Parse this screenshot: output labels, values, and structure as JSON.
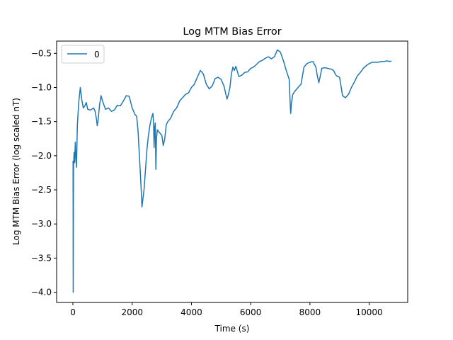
{
  "chart_data": {
    "type": "line",
    "title": "Log MTM Bias Error",
    "xlabel": "Time (s)",
    "ylabel": "Log MTM Bias Error (log scaled nT)",
    "xlim": [
      -550,
      11300
    ],
    "ylim": [
      -4.15,
      -0.32
    ],
    "xticks": [
      0,
      2000,
      4000,
      6000,
      8000,
      10000
    ],
    "xtick_labels": [
      "0",
      "2000",
      "4000",
      "6000",
      "8000",
      "10000"
    ],
    "yticks": [
      -4.0,
      -3.5,
      -3.0,
      -2.5,
      -2.0,
      -1.5,
      -1.0,
      -0.5
    ],
    "ytick_labels": [
      "−4.0",
      "−3.5",
      "−3.0",
      "−2.5",
      "−2.0",
      "−1.5",
      "−1.0",
      "−0.5"
    ],
    "grid": false,
    "legend": {
      "position": "top-left",
      "entries": [
        "0"
      ]
    },
    "series": [
      {
        "name": "0",
        "color": "#1f77b4",
        "x": [
          0,
          5,
          10,
          20,
          40,
          60,
          80,
          100,
          120,
          150,
          200,
          250,
          300,
          350,
          400,
          450,
          500,
          600,
          700,
          750,
          800,
          820,
          850,
          900,
          950,
          1000,
          1100,
          1200,
          1300,
          1400,
          1500,
          1600,
          1700,
          1800,
          1900,
          2000,
          2100,
          2150,
          2180,
          2200,
          2250,
          2300,
          2330,
          2400,
          2450,
          2500,
          2550,
          2600,
          2650,
          2700,
          2720,
          2740,
          2760,
          2780,
          2800,
          2820,
          2850,
          2900,
          3000,
          3050,
          3100,
          3150,
          3200,
          3300,
          3400,
          3500,
          3600,
          3700,
          3800,
          3900,
          4000,
          4100,
          4200,
          4300,
          4400,
          4500,
          4600,
          4700,
          4800,
          4900,
          5000,
          5100,
          5200,
          5250,
          5300,
          5350,
          5400,
          5450,
          5500,
          5600,
          5700,
          5800,
          5900,
          6000,
          6100,
          6200,
          6300,
          6400,
          6500,
          6600,
          6700,
          6800,
          6900,
          7000,
          7100,
          7200,
          7300,
          7330,
          7350,
          7380,
          7420,
          7500,
          7600,
          7700,
          7800,
          7900,
          8000,
          8100,
          8200,
          8250,
          8300,
          8350,
          8400,
          8500,
          8600,
          8700,
          8800,
          8850,
          8900,
          9000,
          9050,
          9100,
          9200,
          9300,
          9400,
          9500,
          9600,
          9700,
          9800,
          9900,
          10000,
          10100,
          10200,
          10300,
          10400,
          10500,
          10600,
          10700,
          10750
        ],
        "values": [
          -2.1,
          -2.08,
          -4.0,
          -2.15,
          -1.95,
          -2.1,
          -1.8,
          -2.0,
          -2.17,
          -1.55,
          -1.2,
          -1.0,
          -1.18,
          -1.3,
          -1.27,
          -1.22,
          -1.32,
          -1.33,
          -1.3,
          -1.35,
          -1.48,
          -1.56,
          -1.48,
          -1.25,
          -1.12,
          -1.2,
          -1.32,
          -1.3,
          -1.35,
          -1.33,
          -1.26,
          -1.27,
          -1.2,
          -1.12,
          -1.13,
          -1.3,
          -1.4,
          -1.42,
          -1.55,
          -1.65,
          -2.05,
          -2.45,
          -2.75,
          -2.5,
          -2.2,
          -1.9,
          -1.7,
          -1.55,
          -1.45,
          -1.38,
          -1.5,
          -1.88,
          -1.58,
          -1.52,
          -2.2,
          -1.75,
          -1.62,
          -1.65,
          -1.7,
          -1.85,
          -1.75,
          -1.55,
          -1.5,
          -1.45,
          -1.35,
          -1.3,
          -1.2,
          -1.15,
          -1.1,
          -1.08,
          -1.0,
          -0.95,
          -0.85,
          -0.75,
          -0.8,
          -0.95,
          -1.02,
          -0.98,
          -0.87,
          -0.85,
          -0.88,
          -0.98,
          -1.17,
          -1.1,
          -1.0,
          -0.8,
          -0.7,
          -0.75,
          -0.69,
          -0.84,
          -0.82,
          -0.78,
          -0.77,
          -0.72,
          -0.7,
          -0.66,
          -0.62,
          -0.6,
          -0.57,
          -0.55,
          -0.58,
          -0.55,
          -0.45,
          -0.48,
          -0.6,
          -0.75,
          -0.88,
          -1.2,
          -1.38,
          -1.22,
          -1.1,
          -1.05,
          -1.0,
          -0.95,
          -0.7,
          -0.65,
          -0.63,
          -0.62,
          -0.7,
          -0.83,
          -0.93,
          -0.83,
          -0.72,
          -0.71,
          -0.72,
          -0.73,
          -0.75,
          -0.8,
          -0.83,
          -0.85,
          -0.98,
          -1.12,
          -1.15,
          -1.1,
          -1.0,
          -0.92,
          -0.83,
          -0.78,
          -0.72,
          -0.68,
          -0.65,
          -0.63,
          -0.63,
          -0.63,
          -0.62,
          -0.62,
          -0.61,
          -0.62,
          -0.61
        ]
      }
    ]
  }
}
